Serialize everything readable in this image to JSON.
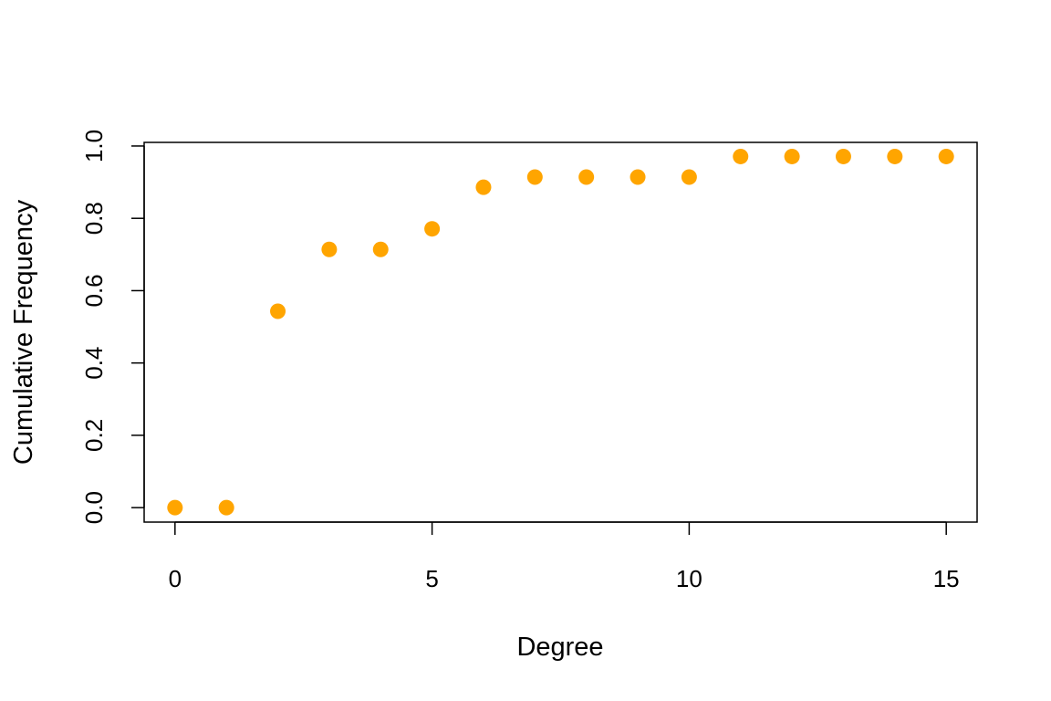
{
  "chart_data": {
    "type": "scatter",
    "title": "",
    "xlabel": "Degree",
    "ylabel": "Cumulative Frequency",
    "xlim": [
      -0.6,
      15.6
    ],
    "ylim": [
      -0.04,
      1.01
    ],
    "x_ticks": [
      0,
      5,
      10,
      15
    ],
    "x_tick_labels": [
      "0",
      "5",
      "10",
      "15"
    ],
    "y_ticks": [
      0.0,
      0.2,
      0.4,
      0.6,
      0.8,
      1.0
    ],
    "y_tick_labels": [
      "0.0",
      "0.2",
      "0.4",
      "0.6",
      "0.8",
      "1.0"
    ],
    "grid": false,
    "legend": "none",
    "marker_color": "#FFA500",
    "series": [
      {
        "x": [
          0,
          1,
          2,
          3,
          4,
          5,
          6,
          7,
          8,
          9,
          10,
          11,
          12,
          13,
          14,
          15
        ],
        "y": [
          0.0,
          0.0,
          0.543,
          0.714,
          0.714,
          0.771,
          0.886,
          0.914,
          0.914,
          0.914,
          0.914,
          0.971,
          0.971,
          0.971,
          0.971,
          0.971
        ]
      }
    ]
  }
}
